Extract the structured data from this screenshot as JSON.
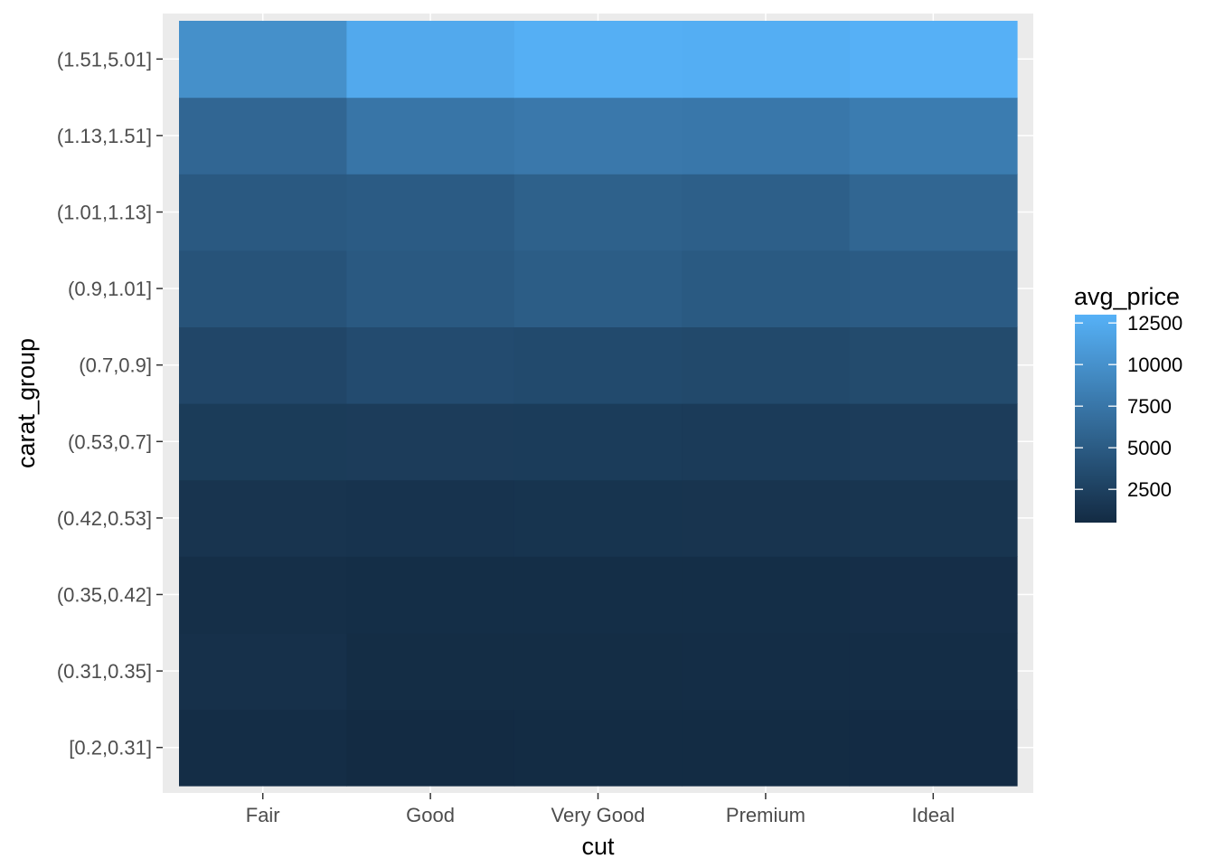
{
  "chart_data": {
    "type": "heatmap",
    "xlabel": "cut",
    "ylabel": "carat_group",
    "x_categories": [
      "Fair",
      "Good",
      "Very Good",
      "Premium",
      "Ideal"
    ],
    "y_categories": [
      "[0.2,0.31]",
      "(0.31,0.35]",
      "(0.35,0.42]",
      "(0.42,0.53]",
      "(0.53,0.7]",
      "(0.7,0.9]",
      "(0.9,1.01]",
      "(1.01,1.13]",
      "(1.13,1.51]",
      "(1.51,5.01]"
    ],
    "values": [
      [
        730,
        520,
        560,
        560,
        540
      ],
      [
        980,
        640,
        650,
        680,
        680
      ],
      [
        830,
        770,
        760,
        770,
        820
      ],
      [
        1350,
        1290,
        1330,
        1360,
        1390
      ],
      [
        2050,
        2120,
        2080,
        2020,
        2090
      ],
      [
        3050,
        3530,
        3390,
        3270,
        3440
      ],
      [
        4230,
        4830,
        5130,
        4860,
        5000
      ],
      [
        4800,
        5000,
        5520,
        5380,
        6010
      ],
      [
        6050,
        7420,
        7720,
        7630,
        8050
      ],
      [
        9900,
        12300,
        12800,
        12700,
        12950
      ]
    ],
    "legend": {
      "title": "avg_price",
      "ticks": [
        2500,
        5000,
        7500,
        10000,
        12500
      ],
      "tick_labels": [
        "2500",
        "5000",
        "7500",
        "10000",
        "12500"
      ],
      "position": "right"
    },
    "color_scale": {
      "low": "#132B43",
      "high": "#56B1F7",
      "range": [
        500,
        13000
      ]
    },
    "panel_background": "#EBEBEB",
    "grid": true
  }
}
